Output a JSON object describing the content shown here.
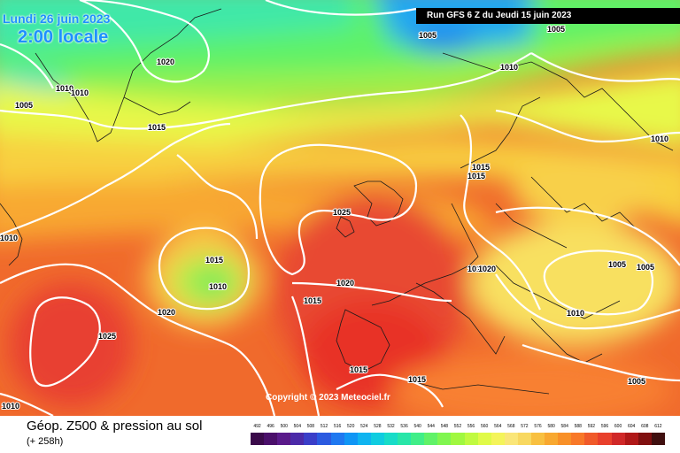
{
  "header": {
    "date_label": "Lundi 26 juin 2023",
    "hour_label": "2:00 locale",
    "run_label": "Run GFS 6 Z du Jeudi 15 juin 2023"
  },
  "map": {
    "copyright": "Copyright © 2023 Meteociel.fr",
    "pressure_labels": [
      {
        "id": "p1",
        "text": "1005"
      },
      {
        "id": "p2",
        "text": "1005"
      },
      {
        "id": "p3",
        "text": "1020"
      },
      {
        "id": "p4",
        "text": "1010"
      },
      {
        "id": "p5",
        "text": "1010"
      },
      {
        "id": "p6",
        "text": "1010"
      },
      {
        "id": "p7",
        "text": "1005"
      },
      {
        "id": "p8",
        "text": "1015"
      },
      {
        "id": "p9",
        "text": "1010"
      },
      {
        "id": "p10",
        "text": "1015"
      },
      {
        "id": "p11",
        "text": "1015"
      },
      {
        "id": "p12",
        "text": "1025"
      },
      {
        "id": "p13",
        "text": "1010"
      },
      {
        "id": "p14",
        "text": "1015"
      },
      {
        "id": "p15",
        "text": "1010"
      },
      {
        "id": "p16",
        "text": "1010"
      },
      {
        "id": "p17",
        "text": "1020"
      },
      {
        "id": "p18",
        "text": "1020"
      },
      {
        "id": "p19",
        "text": "1005"
      },
      {
        "id": "p20",
        "text": "1005"
      },
      {
        "id": "p21",
        "text": "1010"
      },
      {
        "id": "p22",
        "text": "1015"
      },
      {
        "id": "p23",
        "text": "1025"
      },
      {
        "id": "p24",
        "text": "1015"
      },
      {
        "id": "p25",
        "text": "1015"
      },
      {
        "id": "p26",
        "text": "1005"
      },
      {
        "id": "p27",
        "text": "1020"
      },
      {
        "id": "p28",
        "text": "1010"
      }
    ]
  },
  "footer": {
    "title": "Géop. Z500 & pression au sol",
    "subtitle": "(+ 258h)"
  },
  "legend": {
    "labels": [
      "492",
      "496",
      "500",
      "504",
      "508",
      "512",
      "516",
      "520",
      "524",
      "528",
      "532",
      "536",
      "540",
      "544",
      "548",
      "552",
      "556",
      "560",
      "564",
      "568",
      "572",
      "576",
      "580",
      "584",
      "588",
      "592",
      "596",
      "600",
      "604",
      "608",
      "612"
    ],
    "colors": [
      "#3a0a4a",
      "#4a0f6a",
      "#5a1a8a",
      "#4b2aa8",
      "#3a3ec8",
      "#2b5ae0",
      "#1f78f0",
      "#1096f5",
      "#10b4f0",
      "#10cce0",
      "#18dcc8",
      "#28e6a8",
      "#40ee88",
      "#60f268",
      "#80f650",
      "#a0f840",
      "#c0fa40",
      "#e0fa48",
      "#f4f45a",
      "#fae678",
      "#f8d860",
      "#f8c040",
      "#f8a830",
      "#f89028",
      "#f87828",
      "#f05a2a",
      "#e8402c",
      "#d02828",
      "#b01818",
      "#801010",
      "#401010"
    ]
  }
}
